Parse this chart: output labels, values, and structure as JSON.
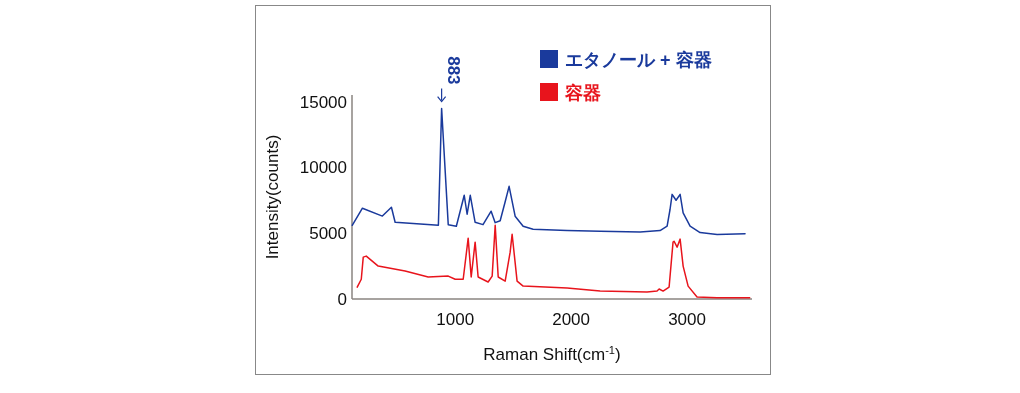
{
  "chart_data": {
    "type": "line",
    "xlabel": "Raman Shift(cm$^{-1}$)",
    "ylabel": "Intensity(counts)",
    "xlim": [
      110,
      3560
    ],
    "ylim": [
      0,
      15500
    ],
    "xticks": [
      1000,
      2000,
      3000
    ],
    "yticks": [
      0,
      5000,
      10000,
      15000
    ],
    "grid": false,
    "legend": "top right",
    "marker": "none",
    "line_style": "solid",
    "annotations": [
      {
        "text": "883",
        "x": 883,
        "y": 14470
      }
    ],
    "series": [
      {
        "name": "エタノール + 容器",
        "color": "#1a3a9c",
        "x": [
          112,
          200,
          372,
          450,
          482,
          855,
          883,
          940,
          1010,
          1078,
          1103,
          1130,
          1172,
          1240,
          1310,
          1345,
          1388,
          1430,
          1465,
          1517,
          1586,
          1672,
          1965,
          2250,
          2595,
          2767,
          2828,
          2853,
          2871,
          2905,
          2940,
          2966,
          3026,
          3112,
          3259,
          3500
        ],
        "values": [
          5600,
          6900,
          6300,
          6970,
          5830,
          5600,
          14470,
          5650,
          5530,
          7880,
          6440,
          7880,
          5830,
          5650,
          6670,
          5800,
          5950,
          7350,
          8560,
          6290,
          5530,
          5300,
          5200,
          5150,
          5100,
          5200,
          5530,
          6800,
          7950,
          7500,
          7950,
          6540,
          5530,
          5050,
          4900,
          4950
        ]
      },
      {
        "name": "容器",
        "color": "#e8141c",
        "x": [
          155,
          190,
          207,
          233,
          336,
          568,
          767,
          940,
          1000,
          1069,
          1112,
          1138,
          1172,
          1198,
          1284,
          1319,
          1345,
          1371,
          1431,
          1474,
          1491,
          1534,
          1586,
          1965,
          2250,
          2655,
          2741,
          2759,
          2793,
          2845,
          2879,
          2888,
          2914,
          2940,
          2966,
          3009,
          3086,
          3259,
          3540
        ],
        "values": [
          900,
          1500,
          3180,
          3260,
          2500,
          2120,
          1670,
          1740,
          1500,
          1500,
          4620,
          1670,
          4320,
          1670,
          1290,
          1740,
          5600,
          1670,
          1360,
          3560,
          4920,
          1360,
          980,
          830,
          610,
          530,
          610,
          760,
          600,
          910,
          4320,
          4390,
          3940,
          4550,
          2500,
          980,
          150,
          100,
          100
        ]
      }
    ]
  }
}
